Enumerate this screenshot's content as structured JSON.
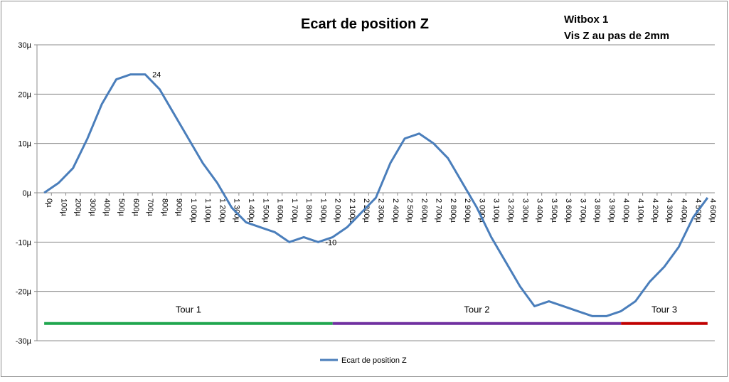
{
  "chart_data": {
    "type": "line",
    "title": "Ecart de position Z",
    "notes": [
      "Witbox 1",
      "Vis Z au pas de 2mm"
    ],
    "categories": [
      "0µ",
      "100µ",
      "200µ",
      "300µ",
      "400µ",
      "500µ",
      "600µ",
      "700µ",
      "800µ",
      "900µ",
      "1 000µ",
      "1 100µ",
      "1 200µ",
      "1 300µ",
      "1 400µ",
      "1 500µ",
      "1 600µ",
      "1 700µ",
      "1 800µ",
      "1 900µ",
      "2 000µ",
      "2 100µ",
      "2 200µ",
      "2 300µ",
      "2 400µ",
      "2 500µ",
      "2 600µ",
      "2 700µ",
      "2 800µ",
      "2 900µ",
      "3 000µ",
      "3 100µ",
      "3 200µ",
      "3 300µ",
      "3 400µ",
      "3 500µ",
      "3 600µ",
      "3 700µ",
      "3 800µ",
      "3 900µ",
      "4 000µ",
      "4 100µ",
      "4 200µ",
      "4 300µ",
      "4 400µ",
      "4 500µ",
      "4 600µ"
    ],
    "series": [
      {
        "name": "Ecart de position Z",
        "color": "#4a7ebb",
        "values": [
          0,
          2,
          5,
          11,
          18,
          23,
          24,
          24,
          21,
          16,
          11,
          6,
          2,
          -3,
          -6,
          -7,
          -8,
          -10,
          -9,
          -10,
          -9,
          -7,
          -4,
          -1,
          6,
          11,
          12,
          10,
          7,
          2,
          -3,
          -9,
          -14,
          -19,
          -23,
          -22,
          -23,
          -24,
          -25,
          -25,
          -24,
          -22,
          -18,
          -15,
          -11,
          -5,
          -1
        ]
      }
    ],
    "point_labels": [
      {
        "category": "700µ",
        "label": "24"
      },
      {
        "category": "1 900µ",
        "label": "-10"
      }
    ],
    "ranges": [
      {
        "label": "Tour 1",
        "from": "0µ",
        "to": "2 000µ",
        "y": -26.5,
        "color": "#1fa64e"
      },
      {
        "label": "Tour 2",
        "from": "2 000µ",
        "to": "4 000µ",
        "y": -26.5,
        "color": "#7030a0"
      },
      {
        "label": "Tour 3",
        "from": "4 000µ",
        "to": "4 600µ",
        "y": -26.5,
        "color": "#c00000"
      }
    ],
    "ylim": [
      -30,
      30
    ],
    "yticks": [
      {
        "value": -30,
        "label": "-30µ"
      },
      {
        "value": -20,
        "label": "-20µ"
      },
      {
        "value": -10,
        "label": "-10µ"
      },
      {
        "value": 0,
        "label": "0µ"
      },
      {
        "value": 10,
        "label": "10µ"
      },
      {
        "value": 20,
        "label": "20µ"
      },
      {
        "value": 30,
        "label": "30µ"
      }
    ],
    "grid": true,
    "legend": "bottom"
  }
}
